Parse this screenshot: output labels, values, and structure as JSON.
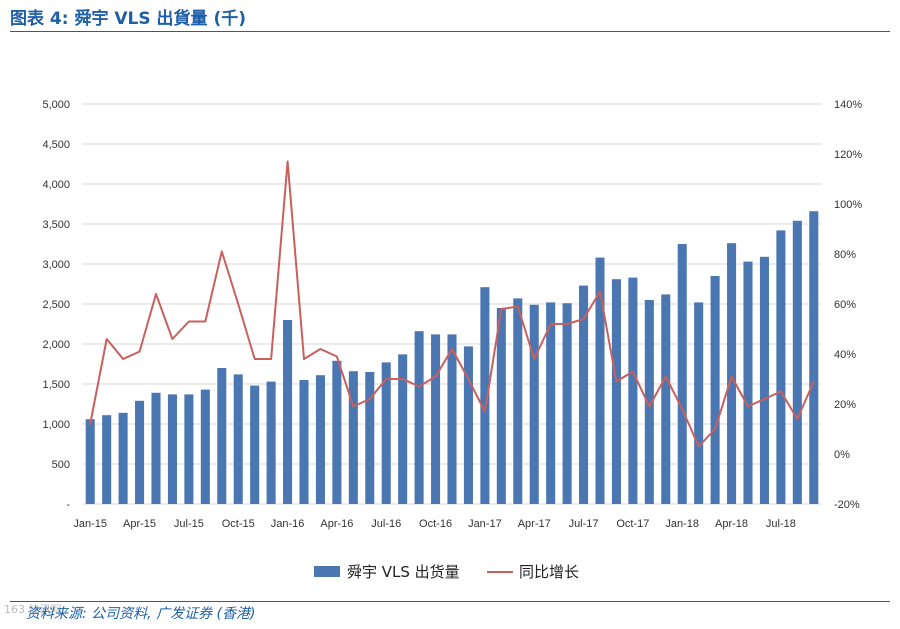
{
  "page": {
    "title": "图表 4: 舜宇 VLS 出貨量 (千)",
    "source": "资料来源: 公司资料, 广发证券 (香港)",
    "watermark": "163 快讯网"
  },
  "colors": {
    "bar": "#4a76b2",
    "line": "#c8605e",
    "title": "#1f5fa8",
    "rule": "#2a5c9a",
    "grid": "#d9d9d9",
    "axis_text": "#333333"
  },
  "chart_data": {
    "type": "bar",
    "categories": [
      "Jan-15",
      "Feb-15",
      "Mar-15",
      "Apr-15",
      "May-15",
      "Jun-15",
      "Jul-15",
      "Aug-15",
      "Sep-15",
      "Oct-15",
      "Nov-15",
      "Dec-15",
      "Jan-16",
      "Feb-16",
      "Mar-16",
      "Apr-16",
      "May-16",
      "Jun-16",
      "Jul-16",
      "Aug-16",
      "Sep-16",
      "Oct-16",
      "Nov-16",
      "Dec-16",
      "Jan-17",
      "Feb-17",
      "Mar-17",
      "Apr-17",
      "May-17",
      "Jun-17",
      "Jul-17",
      "Aug-17",
      "Sep-17",
      "Oct-17",
      "Nov-17",
      "Dec-17",
      "Jan-18",
      "Feb-18",
      "Mar-18",
      "Apr-18",
      "May-18",
      "Jun-18",
      "Jul-18",
      "Aug-18",
      "Sep-18"
    ],
    "x_tick_labels": [
      "Jan-15",
      "Apr-15",
      "Jul-15",
      "Oct-15",
      "Jan-16",
      "Apr-16",
      "Jul-16",
      "Oct-16",
      "Jan-17",
      "Apr-17",
      "Jul-17",
      "Oct-17",
      "Jan-18",
      "Apr-18",
      "Jul-18"
    ],
    "x_tick_every": 3,
    "series": [
      {
        "name": "舜宇 VLS 出货量",
        "type": "bar",
        "axis": "left",
        "values": [
          1060,
          1110,
          1140,
          1290,
          1390,
          1370,
          1370,
          1430,
          1700,
          1620,
          1480,
          1530,
          2300,
          1550,
          1610,
          1790,
          1660,
          1650,
          1770,
          1870,
          2160,
          2120,
          2120,
          1970,
          2710,
          2450,
          2570,
          2490,
          2520,
          2510,
          2730,
          3080,
          2810,
          2830,
          2550,
          2620,
          3250,
          2520,
          2850,
          3260,
          3030,
          3090,
          3420,
          3540,
          3660
        ]
      },
      {
        "name": "同比增长",
        "type": "line",
        "axis": "right",
        "values": [
          12,
          46,
          38,
          41,
          64,
          46,
          53,
          53,
          81,
          60,
          38,
          38,
          117,
          38,
          42,
          39,
          19,
          22,
          30,
          30,
          27,
          31,
          42,
          30,
          17,
          58,
          59,
          38,
          52,
          52,
          54,
          65,
          29,
          33,
          19,
          31,
          18,
          3,
          10,
          31,
          19,
          22,
          25,
          14,
          29
        ]
      }
    ],
    "left_axis": {
      "min": 0,
      "max": 5000,
      "step": 500,
      "tick_labels": [
        "-",
        "500",
        "1,000",
        "1,500",
        "2,000",
        "2,500",
        "3,000",
        "3,500",
        "4,000",
        "4,500",
        "5,000"
      ]
    },
    "right_axis": {
      "min": -20,
      "max": 140,
      "step": 20,
      "tick_labels": [
        "-20%",
        "0%",
        "20%",
        "40%",
        "60%",
        "80%",
        "100%",
        "120%",
        "140%"
      ]
    },
    "grid": true,
    "legend_position": "bottom"
  }
}
